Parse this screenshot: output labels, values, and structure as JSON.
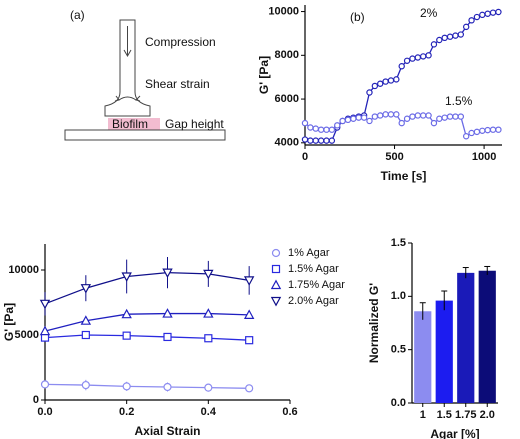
{
  "diagram": {
    "panel_label": "(a)",
    "compression": "Compression",
    "shear": "Shear strain",
    "biofilm": "Biofilm",
    "gap": "Gap height"
  },
  "chart_data": [
    {
      "type": "line",
      "panel_label": "(b)",
      "xlabel": "Time [s]",
      "ylabel": "G' [Pa]",
      "xlim": [
        0,
        1100
      ],
      "xticks": [
        0,
        500,
        1000
      ],
      "ylim": [
        3900,
        10300
      ],
      "yticks": [
        4000,
        6000,
        8000,
        10000
      ],
      "legend": "inline",
      "marker": "circle",
      "x": [
        0,
        30,
        60,
        90,
        120,
        150,
        180,
        210,
        240,
        270,
        300,
        330,
        360,
        390,
        420,
        450,
        480,
        510,
        540,
        570,
        600,
        630,
        660,
        690,
        720,
        750,
        780,
        810,
        840,
        870,
        900,
        930,
        960,
        990,
        1020,
        1050,
        1080
      ],
      "series": [
        {
          "name": "2%",
          "color": "#2323b8",
          "values": [
            4150,
            4100,
            4100,
            4100,
            4100,
            4100,
            4700,
            5000,
            5100,
            5150,
            5200,
            5250,
            6300,
            6600,
            6700,
            6800,
            6850,
            6900,
            7500,
            7750,
            7850,
            7900,
            7950,
            8000,
            8500,
            8700,
            8800,
            8850,
            8900,
            8950,
            9300,
            9600,
            9750,
            9850,
            9900,
            9950,
            9980
          ]
        },
        {
          "name": "1.5%",
          "color": "#6b6be6",
          "values": [
            4900,
            4700,
            4650,
            4600,
            4600,
            4600,
            4800,
            5000,
            5050,
            5100,
            5150,
            5150,
            5000,
            5200,
            5250,
            5300,
            5300,
            5300,
            4900,
            5100,
            5200,
            5250,
            5250,
            5250,
            4900,
            5100,
            5150,
            5200,
            5200,
            5200,
            4300,
            4450,
            4500,
            4550,
            4580,
            4600,
            4600
          ]
        }
      ]
    },
    {
      "type": "line",
      "xlabel": "Axial Strain",
      "ylabel": "G' [Pa]",
      "xlim": [
        0,
        0.6
      ],
      "xticks": [
        {
          "value": 0,
          "label": "0.0"
        },
        0.2,
        0.4,
        0.6
      ],
      "ylim": [
        0,
        12000
      ],
      "yticks": [
        0,
        5000,
        10000
      ],
      "legend": "right",
      "x": [
        0,
        0.1,
        0.2,
        0.3,
        0.4,
        0.5
      ],
      "series": [
        {
          "name": "1% Agar",
          "color": "#8c8cf0",
          "marker": "circle",
          "values": [
            1200,
            1150,
            1050,
            1000,
            950,
            900
          ],
          "errors": [
            300,
            400,
            350,
            350,
            300,
            300
          ]
        },
        {
          "name": "1.5% Agar",
          "color": "#2a2ae0",
          "marker": "square",
          "values": [
            4800,
            5000,
            4950,
            4850,
            4750,
            4600
          ],
          "errors": [
            150,
            150,
            100,
            100,
            100,
            100
          ]
        },
        {
          "name": "1.75% Agar",
          "color": "#2020c0",
          "marker": "triangle-up",
          "values": [
            5300,
            6100,
            6600,
            6650,
            6650,
            6550
          ],
          "errors": [
            150,
            200,
            200,
            200,
            200,
            200
          ]
        },
        {
          "name": "2.0% Agar",
          "color": "#10108a",
          "marker": "triangle-down",
          "values": [
            7400,
            8600,
            9500,
            9800,
            9700,
            9200
          ],
          "errors": [
            900,
            1000,
            1300,
            1200,
            1000,
            1100
          ]
        }
      ]
    },
    {
      "type": "bar",
      "xlabel": "Agar [%]",
      "ylabel": "Normalized G'",
      "categories": [
        "1",
        "1.5",
        "1.75",
        "2.0"
      ],
      "values": [
        0.86,
        0.96,
        1.22,
        1.24
      ],
      "errors": [
        0.08,
        0.09,
        0.05,
        0.04
      ],
      "colors": [
        "#8c8cf0",
        "#1c1cf0",
        "#1a1ab8",
        "#0c0c78"
      ],
      "ylim": [
        0,
        1.5
      ],
      "yticks": [
        {
          "value": 0,
          "label": "0.0"
        },
        0.5,
        {
          "value": 1,
          "label": "1.0"
        },
        1.5
      ]
    }
  ]
}
